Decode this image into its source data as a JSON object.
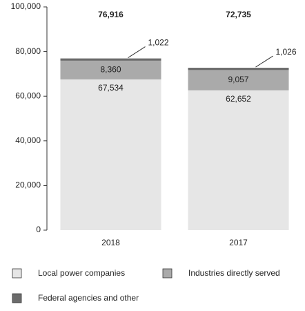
{
  "chart_data": {
    "type": "stacked-bar",
    "categories": [
      "2018",
      "2017"
    ],
    "series": [
      {
        "name": "Local power companies",
        "color": "#e6e6e6",
        "values": [
          67534,
          62652
        ],
        "value_labels": [
          "67,534",
          "62,652"
        ]
      },
      {
        "name": "Industries directly served",
        "color": "#aaaaaa",
        "values": [
          8360,
          9057
        ],
        "value_labels": [
          "8,360",
          "9,057"
        ]
      },
      {
        "name": "Federal agencies and other",
        "color": "#6b6b6b",
        "values": [
          1022,
          1026
        ],
        "value_labels": [
          "1,022",
          "1,026"
        ]
      }
    ],
    "totals": {
      "values": [
        76916,
        72735
      ],
      "value_labels": [
        "76,916",
        "72,735"
      ]
    },
    "ylim": [
      0,
      100000
    ],
    "yticks": [
      0,
      {
        "value": 20000,
        "label": "20,000"
      },
      {
        "value": 40000,
        "label": "40,000"
      },
      {
        "value": 60000,
        "label": "60,000"
      },
      {
        "value": 80000,
        "label": "80,000"
      },
      {
        "value": 100000,
        "label": "100,000"
      }
    ],
    "grid": false
  }
}
